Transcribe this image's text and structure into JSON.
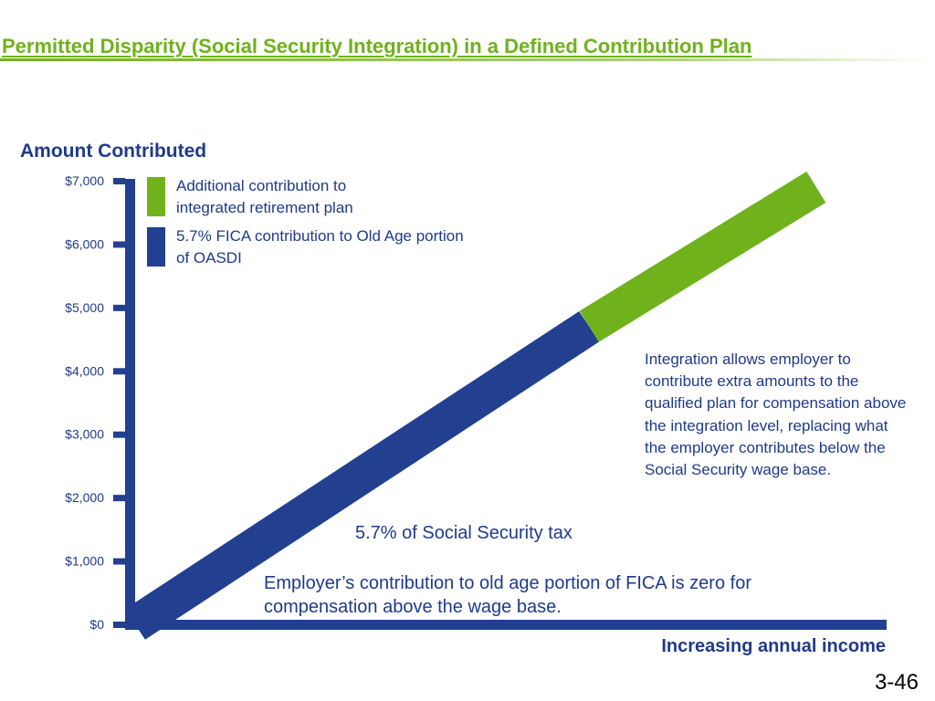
{
  "page": {
    "title": "Permitted Disparity (Social Security Integration) in a Defined Contribution Plan",
    "slide_number": "3-46"
  },
  "colors": {
    "title_green": "#6fb21c",
    "navy": "#22408f",
    "green": "#6fb21c",
    "text_navy": "#1f3a8a"
  },
  "legend": {
    "items": [
      {
        "label": "Additional contribution to integrated retirement plan",
        "color": "#6fb21c"
      },
      {
        "label": "5.7% FICA contribution to Old Age portion of OASDI",
        "color": "#22408f"
      }
    ]
  },
  "annotations": {
    "integration_note": "Integration allows employer to contribute extra amounts to the qualified plan for compensation above the integration level, replacing what the employer contributes below the Social Security wage base.",
    "mid_label": "5.7% of Social Security tax",
    "bottom_note": "Employer’s contribution to old age portion of FICA is zero for compensation above the wage base."
  },
  "chart_data": {
    "type": "line",
    "ylabel": "Amount Contributed",
    "xlabel": "Increasing annual income",
    "ylim": [
      0,
      7000
    ],
    "y_ticks": [
      "$0",
      "$1,000",
      "$2,000",
      "$3,000",
      "$4,000",
      "$5,000",
      "$6,000",
      "$7,000"
    ],
    "y_tick_values": [
      0,
      1000,
      2000,
      3000,
      4000,
      5000,
      6000,
      7000
    ],
    "x_range": [
      0,
      1
    ],
    "series": [
      {
        "name": "5.7% FICA contribution to Old Age portion of OASDI",
        "color": "#22408f",
        "points": [
          {
            "x": 0,
            "y": 0
          },
          {
            "x": 0.62,
            "y": 4700
          }
        ]
      },
      {
        "name": "Additional contribution to integrated retirement plan",
        "color": "#6fb21c",
        "points": [
          {
            "x": 0.62,
            "y": 4700
          },
          {
            "x": 0.93,
            "y": 6900
          }
        ]
      }
    ],
    "grid": false,
    "legend_position": "top-left"
  }
}
